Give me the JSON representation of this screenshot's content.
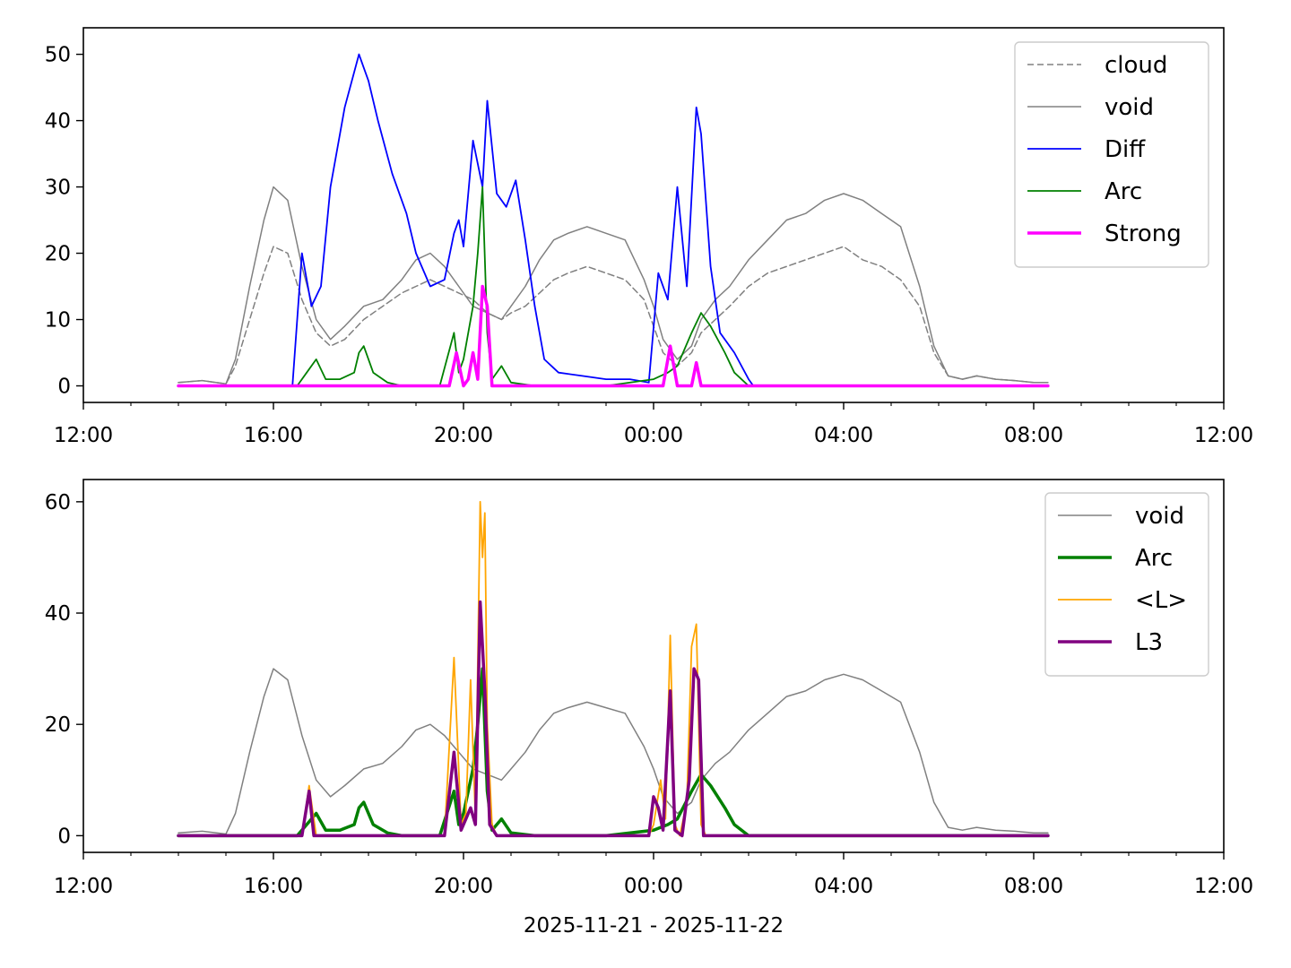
{
  "chart_data": [
    {
      "type": "line",
      "x_range": [
        "12:00",
        "12:00 next day"
      ],
      "x_ticks": [
        "12:00",
        "16:00",
        "20:00",
        "00:00",
        "04:00",
        "08:00",
        "12:00"
      ],
      "x_tick_hours": [
        12,
        16,
        20,
        24,
        28,
        32,
        36
      ],
      "ylim": [
        -2.5,
        54
      ],
      "y_ticks": [
        0,
        10,
        20,
        30,
        40,
        50
      ],
      "y_tick_labels": [
        "0",
        "10",
        "20",
        "30",
        "40",
        "50"
      ],
      "grid": false,
      "legend_position": "upper-right",
      "xlabel": "",
      "series": [
        {
          "name": "cloud",
          "color": "#808080",
          "style": "dashed",
          "width": 1.5,
          "x_hours": [
            14.0,
            14.5,
            15.0,
            15.2,
            15.5,
            15.8,
            16.0,
            16.3,
            16.6,
            16.9,
            17.2,
            17.5,
            17.9,
            18.3,
            18.7,
            19.0,
            19.3,
            19.6,
            19.9,
            20.2,
            20.5,
            20.8,
            21.0,
            21.3,
            21.6,
            21.9,
            22.2,
            22.6,
            23.0,
            23.4,
            23.8,
            24.0,
            24.2,
            24.5,
            24.8,
            25.0,
            25.3,
            25.6,
            26.0,
            26.4,
            26.8,
            27.2,
            27.6,
            28.0,
            28.4,
            28.8,
            29.2,
            29.6,
            29.9,
            30.2,
            30.5,
            30.8,
            31.2,
            31.6,
            32.0,
            32.3
          ],
          "values": [
            0.5,
            0.8,
            0.3,
            3,
            10,
            17,
            21,
            20,
            13,
            8,
            6,
            7,
            10,
            12,
            14,
            15,
            16,
            15,
            14,
            13,
            11,
            10,
            11,
            12,
            14,
            16,
            17,
            18,
            17,
            16,
            13,
            9,
            5,
            3,
            5,
            8,
            10,
            12,
            15,
            17,
            18,
            19,
            20,
            21,
            19,
            18,
            16,
            12,
            5,
            1.5,
            1,
            1.5,
            1,
            0.8,
            0.5,
            0.5
          ]
        },
        {
          "name": "void",
          "color": "#808080",
          "style": "solid",
          "width": 1.5,
          "x_hours": [
            14.0,
            14.5,
            15.0,
            15.2,
            15.5,
            15.8,
            16.0,
            16.3,
            16.6,
            16.9,
            17.2,
            17.5,
            17.9,
            18.3,
            18.7,
            19.0,
            19.3,
            19.6,
            19.9,
            20.2,
            20.5,
            20.8,
            21.0,
            21.3,
            21.6,
            21.9,
            22.2,
            22.6,
            23.0,
            23.4,
            23.8,
            24.0,
            24.2,
            24.5,
            24.8,
            25.0,
            25.3,
            25.6,
            26.0,
            26.4,
            26.8,
            27.2,
            27.6,
            28.0,
            28.4,
            28.8,
            29.2,
            29.6,
            29.9,
            30.2,
            30.5,
            30.8,
            31.2,
            31.6,
            32.0,
            32.3
          ],
          "values": [
            0.5,
            0.8,
            0.3,
            4,
            15,
            25,
            30,
            28,
            18,
            10,
            7,
            9,
            12,
            13,
            16,
            19,
            20,
            18,
            15,
            12,
            11,
            10,
            12,
            15,
            19,
            22,
            23,
            24,
            23,
            22,
            16,
            12,
            7,
            4,
            6,
            10,
            13,
            15,
            19,
            22,
            25,
            26,
            28,
            29,
            28,
            26,
            24,
            15,
            6,
            1.5,
            1,
            1.5,
            1,
            0.8,
            0.5,
            0.5
          ]
        },
        {
          "name": "Diff",
          "color": "#0000ff",
          "style": "solid",
          "width": 1.8,
          "x_hours": [
            14.0,
            15.5,
            16.0,
            16.4,
            16.6,
            16.8,
            17.0,
            17.2,
            17.5,
            17.8,
            17.9,
            18.0,
            18.2,
            18.5,
            18.8,
            19.0,
            19.3,
            19.6,
            19.8,
            19.9,
            20.0,
            20.2,
            20.4,
            20.5,
            20.7,
            20.9,
            21.1,
            21.3,
            21.5,
            21.7,
            22.0,
            22.5,
            23.0,
            23.5,
            23.9,
            24.1,
            24.3,
            24.5,
            24.7,
            24.9,
            25.0,
            25.2,
            25.4,
            25.7,
            26.0,
            26.1,
            32.3
          ],
          "values": [
            0,
            0,
            0,
            0,
            20,
            12,
            15,
            30,
            42,
            50,
            48,
            46,
            40,
            32,
            26,
            20,
            15,
            16,
            23,
            25,
            21,
            37,
            30,
            43,
            29,
            27,
            31,
            22,
            12,
            4,
            2,
            1.5,
            1,
            1,
            0.5,
            17,
            13,
            30,
            15,
            42,
            38,
            18,
            8,
            5,
            1,
            0,
            0
          ]
        },
        {
          "name": "Arc",
          "color": "#008000",
          "style": "solid",
          "width": 1.8,
          "x_hours": [
            14.0,
            16.5,
            16.7,
            16.9,
            17.1,
            17.4,
            17.7,
            17.8,
            17.9,
            18.1,
            18.4,
            18.7,
            19.0,
            19.5,
            19.8,
            19.9,
            20.0,
            20.2,
            20.3,
            20.4,
            20.5,
            20.6,
            20.8,
            21.0,
            21.5,
            22.0,
            23.0,
            24.0,
            24.3,
            24.5,
            24.8,
            25.0,
            25.2,
            25.5,
            25.7,
            26.0,
            32.3
          ],
          "values": [
            0,
            0,
            2,
            4,
            1,
            1,
            2,
            5,
            6,
            2,
            0.5,
            0,
            0,
            0,
            8,
            2,
            4,
            12,
            20,
            30,
            8,
            1,
            3,
            0.5,
            0,
            0,
            0,
            1,
            2,
            3,
            8,
            11,
            9,
            5,
            2,
            0,
            0
          ]
        },
        {
          "name": "Strong",
          "color": "#ff00ff",
          "style": "solid",
          "width": 3.5,
          "x_hours": [
            14.0,
            19.7,
            19.85,
            20.0,
            20.1,
            20.2,
            20.3,
            20.4,
            20.5,
            20.6,
            20.7,
            24.2,
            24.35,
            24.5,
            24.8,
            24.9,
            25.0,
            32.3
          ],
          "values": [
            0,
            0,
            5,
            0,
            1,
            5,
            1,
            15,
            12,
            0,
            0,
            0,
            6,
            0,
            0,
            3.5,
            0,
            0
          ]
        }
      ]
    },
    {
      "type": "line",
      "x_range": [
        "12:00",
        "12:00 next day"
      ],
      "x_ticks": [
        "12:00",
        "16:00",
        "20:00",
        "00:00",
        "04:00",
        "08:00",
        "12:00"
      ],
      "x_tick_hours": [
        12,
        16,
        20,
        24,
        28,
        32,
        36
      ],
      "ylim": [
        -3,
        64
      ],
      "y_ticks": [
        0,
        20,
        40,
        60
      ],
      "y_tick_labels": [
        "0",
        "20",
        "40",
        "60"
      ],
      "grid": false,
      "legend_position": "upper-right",
      "xlabel": "2025-11-21 - 2025-11-22",
      "series": [
        {
          "name": "void",
          "color": "#808080",
          "style": "solid",
          "width": 1.5,
          "x_hours": [
            14.0,
            14.5,
            15.0,
            15.2,
            15.5,
            15.8,
            16.0,
            16.3,
            16.6,
            16.9,
            17.2,
            17.5,
            17.9,
            18.3,
            18.7,
            19.0,
            19.3,
            19.6,
            19.9,
            20.2,
            20.5,
            20.8,
            21.0,
            21.3,
            21.6,
            21.9,
            22.2,
            22.6,
            23.0,
            23.4,
            23.8,
            24.0,
            24.2,
            24.5,
            24.8,
            25.0,
            25.3,
            25.6,
            26.0,
            26.4,
            26.8,
            27.2,
            27.6,
            28.0,
            28.4,
            28.8,
            29.2,
            29.6,
            29.9,
            30.2,
            30.5,
            30.8,
            31.2,
            31.6,
            32.0,
            32.3
          ],
          "values": [
            0.5,
            0.8,
            0.3,
            4,
            15,
            25,
            30,
            28,
            18,
            10,
            7,
            9,
            12,
            13,
            16,
            19,
            20,
            18,
            15,
            12,
            11,
            10,
            12,
            15,
            19,
            22,
            23,
            24,
            23,
            22,
            16,
            12,
            7,
            4,
            6,
            10,
            13,
            15,
            19,
            22,
            25,
            26,
            28,
            29,
            28,
            26,
            24,
            15,
            6,
            1.5,
            1,
            1.5,
            1,
            0.8,
            0.5,
            0.5
          ]
        },
        {
          "name": "Arc",
          "color": "#008000",
          "style": "solid",
          "width": 3.5,
          "x_hours": [
            14.0,
            16.5,
            16.7,
            16.9,
            17.1,
            17.4,
            17.7,
            17.8,
            17.9,
            18.1,
            18.4,
            18.7,
            19.0,
            19.5,
            19.8,
            19.9,
            20.0,
            20.2,
            20.3,
            20.4,
            20.5,
            20.6,
            20.8,
            21.0,
            21.5,
            22.0,
            23.0,
            24.0,
            24.3,
            24.5,
            24.8,
            25.0,
            25.2,
            25.5,
            25.7,
            26.0,
            32.3
          ],
          "values": [
            0,
            0,
            2,
            4,
            1,
            1,
            2,
            5,
            6,
            2,
            0.5,
            0,
            0,
            0,
            8,
            2,
            4,
            12,
            20,
            30,
            8,
            1,
            3,
            0.5,
            0,
            0,
            0,
            1,
            2,
            3,
            8,
            11,
            9,
            5,
            2,
            0,
            0
          ]
        },
        {
          "name": "<L>",
          "color": "#ffa500",
          "style": "solid",
          "width": 1.8,
          "x_hours": [
            14.0,
            16.6,
            16.75,
            16.9,
            17.0,
            19.6,
            19.8,
            19.95,
            20.05,
            20.15,
            20.25,
            20.35,
            20.4,
            20.45,
            20.5,
            20.6,
            20.7,
            23.9,
            24.0,
            24.15,
            24.25,
            24.35,
            24.45,
            24.55,
            24.7,
            24.8,
            24.9,
            25.0,
            25.1,
            25.2,
            32.3
          ],
          "values": [
            0,
            0,
            9,
            0,
            0,
            0,
            32,
            2,
            4,
            28,
            3,
            60,
            50,
            58,
            20,
            2,
            0,
            0,
            2,
            10,
            3,
            36,
            2,
            0,
            6,
            34,
            38,
            2,
            0,
            0,
            0
          ]
        },
        {
          "name": "L3",
          "color": "#800080",
          "style": "solid",
          "width": 3.5,
          "x_hours": [
            14.0,
            16.6,
            16.75,
            16.85,
            17.0,
            19.6,
            19.8,
            19.95,
            20.05,
            20.15,
            20.25,
            20.35,
            20.45,
            20.55,
            20.7,
            23.9,
            24.0,
            24.1,
            24.2,
            24.35,
            24.45,
            24.6,
            24.75,
            24.85,
            24.95,
            25.05,
            25.2,
            32.3
          ],
          "values": [
            0,
            0,
            8,
            0,
            0,
            0,
            15,
            1,
            3,
            5,
            2,
            42,
            26,
            2,
            0,
            0,
            7,
            5,
            1,
            26,
            1,
            0,
            10,
            30,
            28,
            0,
            0,
            0
          ]
        }
      ]
    }
  ]
}
